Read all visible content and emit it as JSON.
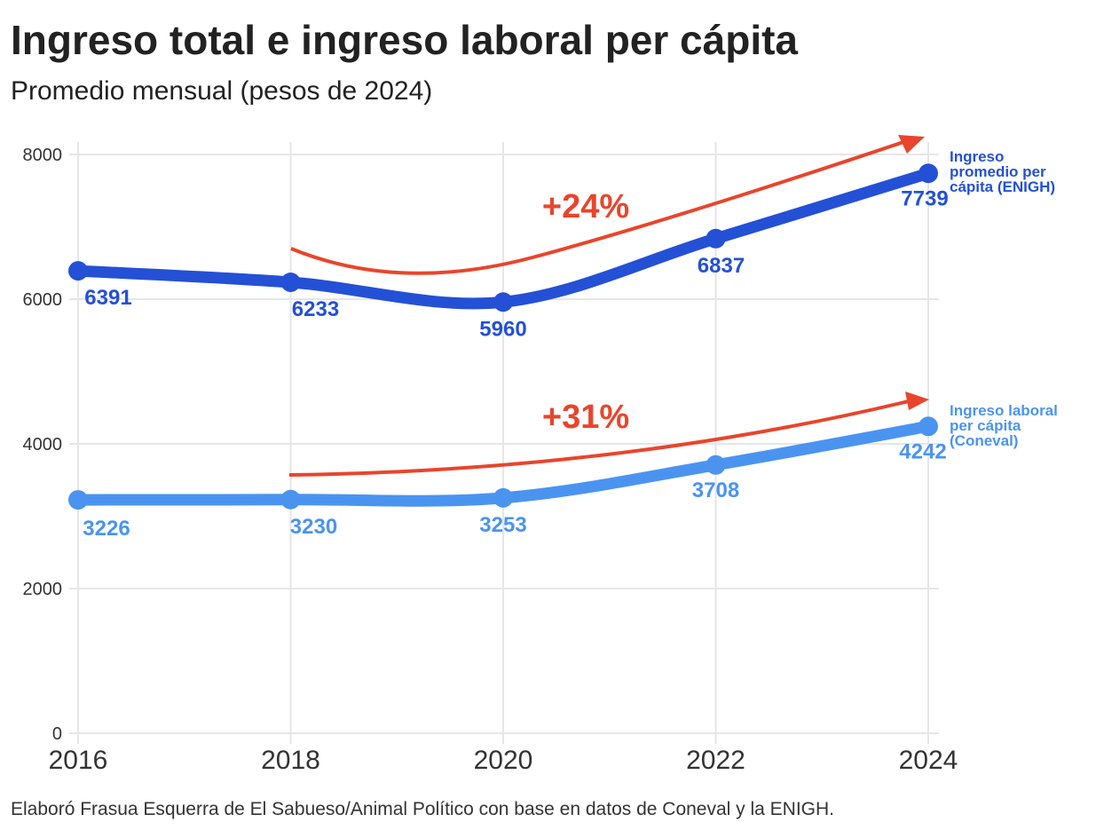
{
  "title": "Ingreso total e ingreso laboral per cápita",
  "subtitle": "Promedio mensual (pesos de 2024)",
  "caption": "Elaboró Frasua Esquerra de El Sabueso/Animal Político con base en datos de Coneval y la ENIGH.",
  "chart_data": {
    "type": "line",
    "title": "Ingreso total e ingreso laboral per cápita",
    "subtitle": "Promedio mensual (pesos de 2024)",
    "x": [
      2016,
      2018,
      2020,
      2022,
      2024
    ],
    "xlim": [
      2016,
      2024
    ],
    "ylim": [
      0,
      8000
    ],
    "y_ticks": [
      0,
      2000,
      4000,
      6000,
      8000
    ],
    "grid": true,
    "series": [
      {
        "name": "Ingreso promedio per cápita (ENIGH)",
        "label_lines": [
          "Ingreso",
          "promedio per",
          "cápita (ENIGH)"
        ],
        "values": [
          6391,
          6233,
          5960,
          6837,
          7739
        ],
        "color": "#2450d6"
      },
      {
        "name": "Ingreso laboral per cápita (Coneval)",
        "label_lines": [
          "Ingreso laboral",
          "per cápita",
          "(Coneval)"
        ],
        "values": [
          3226,
          3230,
          3253,
          3708,
          4242
        ],
        "color": "#4a94f0"
      }
    ],
    "annotations": [
      {
        "text": "+24%",
        "color": "#e8452c"
      },
      {
        "text": "+31%",
        "color": "#e8452c"
      }
    ]
  }
}
